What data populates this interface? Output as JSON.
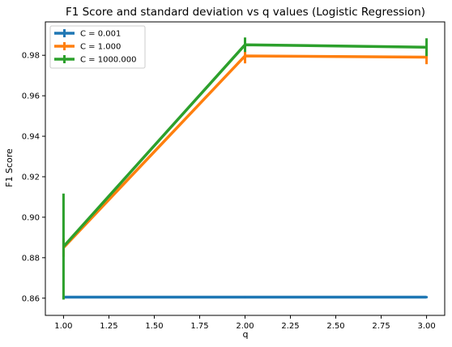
{
  "chart_data": {
    "type": "line",
    "title": "F1 Score and standard deviation vs q values (Logistic Regression)",
    "xlabel": "q",
    "ylabel": "F1 Score",
    "xlim": [
      0.9,
      3.1
    ],
    "ylim": [
      0.8515,
      0.9965
    ],
    "grid": false,
    "legend_position": "top-left",
    "x_ticks": [
      1.0,
      1.25,
      1.5,
      1.75,
      2.0,
      2.25,
      2.5,
      2.75,
      3.0
    ],
    "x_tick_labels": [
      "1.00",
      "1.25",
      "1.50",
      "1.75",
      "2.00",
      "2.25",
      "2.50",
      "2.75",
      "3.00"
    ],
    "y_ticks": [
      0.86,
      0.88,
      0.9,
      0.92,
      0.94,
      0.96,
      0.98
    ],
    "y_tick_labels": [
      "0.86",
      "0.88",
      "0.90",
      "0.92",
      "0.94",
      "0.96",
      "0.98"
    ],
    "x": [
      1,
      2,
      3
    ],
    "series": [
      {
        "name": "C = 0.001",
        "color": "#1f77b4",
        "values": [
          0.8605,
          0.8605,
          0.8605
        ],
        "errors": [
          0.0005,
          0.0005,
          0.0005
        ]
      },
      {
        "name": "C = 1.000",
        "color": "#ff7f0e",
        "values": [
          0.885,
          0.9797,
          0.9791
        ],
        "errors": [
          0.0045,
          0.0037,
          0.0035
        ]
      },
      {
        "name": "C = 1000.000",
        "color": "#2ca02c",
        "values": [
          0.8855,
          0.9852,
          0.984
        ],
        "errors": [
          0.0262,
          0.0036,
          0.0044
        ]
      }
    ]
  }
}
